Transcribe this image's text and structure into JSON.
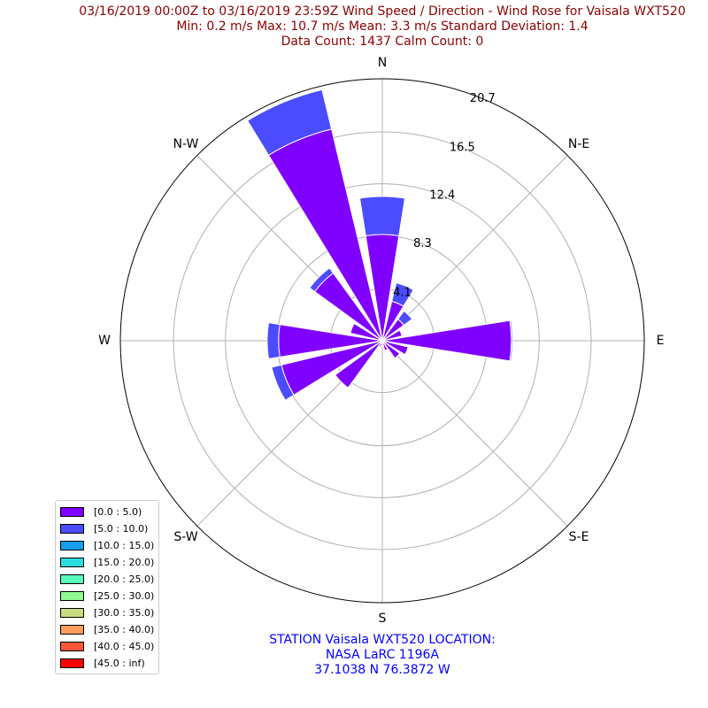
{
  "title": {
    "line1": "03/16/2019 00:00Z to 03/16/2019 23:59Z Wind Speed / Direction - Wind Rose for Vaisala WXT520",
    "line2": "Min: 0.2 m/s   Max: 10.7 m/s   Mean: 3.3 m/s  Standard Deviation: 1.4",
    "line3": "Data Count: 1437  Calm Count:  0"
  },
  "station": {
    "line1": "STATION Vaisala WXT520 LOCATION:",
    "line2": "NASA LaRC 1196A",
    "line3": "37.1038 N 76.3872 W"
  },
  "chart_data": {
    "type": "wind-rose",
    "rmax": 20.7,
    "radial_ticks": [
      4.1,
      8.3,
      12.4,
      16.5,
      20.7
    ],
    "directions": [
      "N",
      "NNE",
      "NE",
      "ENE",
      "E",
      "ESE",
      "SE",
      "SSE",
      "S",
      "SSW",
      "SW",
      "WSW",
      "W",
      "WNW",
      "NW",
      "NNW"
    ],
    "compass_labels": [
      {
        "label": "N",
        "angle": 0
      },
      {
        "label": "N-E",
        "angle": 45
      },
      {
        "label": "E",
        "angle": 90
      },
      {
        "label": "S-E",
        "angle": 135
      },
      {
        "label": "S",
        "angle": 180
      },
      {
        "label": "S-W",
        "angle": 225
      },
      {
        "label": "W",
        "angle": 270
      },
      {
        "label": "N-W",
        "angle": 315
      }
    ],
    "series": [
      {
        "name": "[0.0 : 5.0)",
        "color": "#8000ff",
        "values": [
          8.4,
          3.2,
          2.1,
          1.6,
          10.2,
          2.1,
          1.7,
          0.8,
          0.4,
          0.5,
          4.6,
          8.2,
          8.2,
          2.6,
          6.6,
          17.2
        ]
      },
      {
        "name": "[5.0 : 10.0)",
        "color": "#4b4bff",
        "values": [
          3.0,
          1.5,
          0.8,
          0.0,
          0.1,
          0.0,
          0.0,
          0.0,
          0.0,
          0.0,
          0.0,
          0.8,
          0.9,
          0.0,
          0.5,
          3.2
        ]
      }
    ],
    "legend": [
      {
        "label": "[0.0 : 5.0)",
        "color": "#8000ff"
      },
      {
        "label": "[5.0 : 10.0)",
        "color": "#4b4bff"
      },
      {
        "label": "[10.0 : 15.0)",
        "color": "#139ef0"
      },
      {
        "label": "[15.0 : 20.0)",
        "color": "#2adddd"
      },
      {
        "label": "[20.0 : 25.0)",
        "color": "#5bfbb9"
      },
      {
        "label": "[25.0 : 30.0)",
        "color": "#91fa91"
      },
      {
        "label": "[30.0 : 35.0)",
        "color": "#c8dd7f"
      },
      {
        "label": "[35.0 : 40.0)",
        "color": "#ff9e5d"
      },
      {
        "label": "[40.0 : 45.0)",
        "color": "#ff5539"
      },
      {
        "label": "[45.0 : inf)",
        "color": "#ff0000"
      }
    ],
    "legend_position": "lower-left",
    "grid": true
  }
}
